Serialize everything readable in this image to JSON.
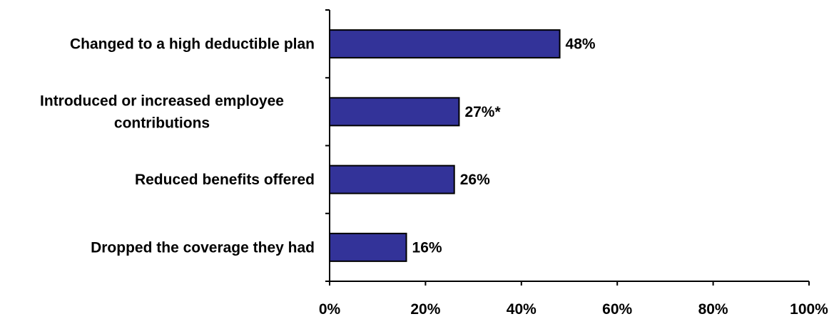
{
  "chart_data": {
    "type": "bar",
    "orientation": "horizontal",
    "categories": [
      [
        "Changed to a high deductible plan"
      ],
      [
        "Introduced or increased employee",
        "contributions"
      ],
      [
        "Reduced benefits offered"
      ],
      [
        "Dropped the coverage they had"
      ]
    ],
    "values": [
      48,
      27,
      26,
      16
    ],
    "data_labels": [
      "48%",
      "27%*",
      "26%",
      "16%"
    ],
    "xlim": [
      0,
      100
    ],
    "x_ticks": [
      0,
      20,
      40,
      60,
      80,
      100
    ],
    "x_tick_labels": [
      "0%",
      "20%",
      "40%",
      "60%",
      "80%",
      "100%"
    ],
    "bar_color": "#333399",
    "bar_edge_color": "#000000",
    "grid": false,
    "legend": "none"
  }
}
